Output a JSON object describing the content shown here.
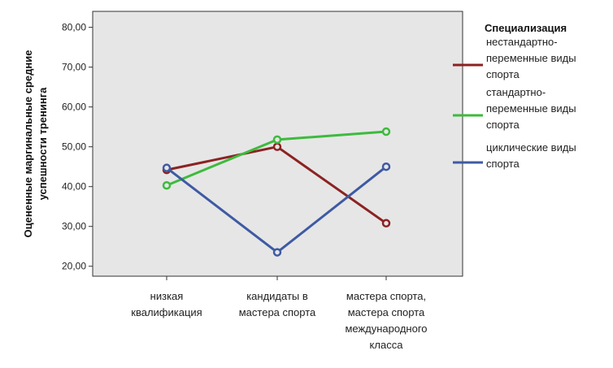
{
  "chart_data": {
    "type": "line",
    "ylabel": "Оцененные маргинальные средние успешности тренинга",
    "ylabel_lines": [
      "Оцененные маргинальные средние",
      "успешности тренинга"
    ],
    "categories": [
      "низкая квалификация",
      "кандидаты в мастера спорта",
      "мастера спорта, мастера спорта международного класса"
    ],
    "category_lines": [
      [
        "низкая",
        "квалификация"
      ],
      [
        "кандидаты в",
        "мастера спорта"
      ],
      [
        "мастера спорта,",
        "мастера спорта",
        "международного",
        "класса"
      ]
    ],
    "yticks": [
      "20,00",
      "30,00",
      "40,00",
      "50,00",
      "60,00",
      "70,00",
      "80,00"
    ],
    "ytick_values": [
      20,
      30,
      40,
      50,
      60,
      70,
      80
    ],
    "ylim": [
      17.5,
      84
    ],
    "grid": false,
    "plot_background": "#e6e6e6",
    "legend_position": "right",
    "legend_title": "Специализация",
    "series": [
      {
        "name": "нестандартно-переменные виды спорта",
        "name_lines": [
          "нестандартно-",
          "переменные виды",
          "спорта"
        ],
        "color": "#8b2323",
        "values": [
          44.2,
          50.0,
          30.8
        ]
      },
      {
        "name": "стандартно-переменные виды спорта",
        "name_lines": [
          "стандартно-",
          "переменные виды",
          "спорта"
        ],
        "color": "#3dbb3d",
        "values": [
          40.3,
          51.8,
          53.8
        ]
      },
      {
        "name": "циклические виды спорта",
        "name_lines": [
          "циклические виды",
          "спорта"
        ],
        "color": "#3e5aa4",
        "values": [
          44.7,
          23.5,
          45.0
        ]
      }
    ]
  }
}
